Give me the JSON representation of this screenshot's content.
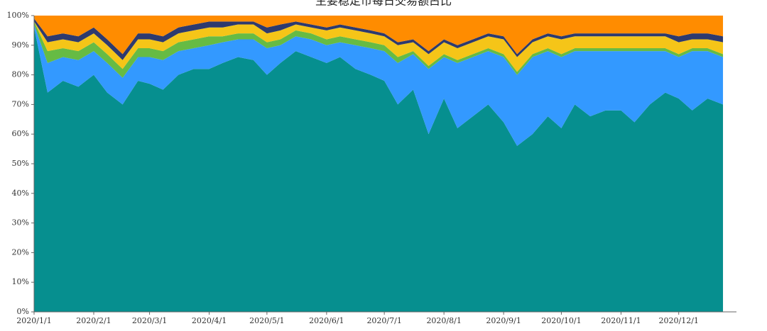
{
  "chart_data": {
    "type": "stacked_area",
    "title": "主要稳定币每日交易额占比",
    "x": [
      "2020/1/1",
      "2020/1/8",
      "2020/1/16",
      "2020/1/24",
      "2020/2/1",
      "2020/2/8",
      "2020/2/16",
      "2020/2/24",
      "2020/3/1",
      "2020/3/8",
      "2020/3/16",
      "2020/3/24",
      "2020/4/1",
      "2020/4/8",
      "2020/4/16",
      "2020/4/24",
      "2020/5/1",
      "2020/5/8",
      "2020/5/16",
      "2020/5/24",
      "2020/6/1",
      "2020/6/8",
      "2020/6/16",
      "2020/6/24",
      "2020/7/1",
      "2020/7/8",
      "2020/7/16",
      "2020/7/24",
      "2020/8/1",
      "2020/8/8",
      "2020/8/16",
      "2020/8/24",
      "2020/9/1",
      "2020/9/8",
      "2020/9/16",
      "2020/9/24",
      "2020/10/1",
      "2020/10/8",
      "2020/10/16",
      "2020/10/24",
      "2020/11/1",
      "2020/11/8",
      "2020/11/16",
      "2020/11/24",
      "2020/12/1",
      "2020/12/8",
      "2020/12/16",
      "2020/12/24"
    ],
    "series": [
      {
        "color": "#068f8f",
        "values": [
          96,
          74,
          78,
          76,
          80,
          74,
          70,
          78,
          77,
          75,
          80,
          82,
          82,
          84,
          86,
          85,
          80,
          84,
          88,
          86,
          84,
          86,
          82,
          80,
          78,
          70,
          75,
          60,
          72,
          62,
          66,
          70,
          64,
          56,
          60,
          66,
          62,
          70,
          66,
          68,
          68,
          64,
          70,
          74,
          72,
          68,
          72,
          70
        ]
      },
      {
        "color": "#3399ff",
        "values": [
          1,
          10,
          8,
          9,
          8,
          10,
          9,
          8,
          9,
          10,
          8,
          7,
          8,
          7,
          6,
          7,
          9,
          6,
          5,
          6,
          6,
          5,
          8,
          9,
          10,
          14,
          12,
          22,
          14,
          22,
          20,
          18,
          22,
          24,
          26,
          22,
          24,
          18,
          22,
          20,
          20,
          24,
          18,
          14,
          14,
          20,
          16,
          16
        ]
      },
      {
        "color": "#66bb44",
        "values": [
          1,
          4,
          3,
          3,
          3,
          3,
          3,
          3,
          3,
          3,
          3,
          3,
          3,
          2,
          2,
          2,
          2,
          2,
          2,
          2,
          2,
          2,
          2,
          2,
          2,
          2,
          1,
          1,
          1,
          1,
          1,
          1,
          1,
          1,
          1,
          1,
          1,
          1,
          1,
          1,
          1,
          1,
          1,
          1,
          1,
          1,
          1,
          1
        ]
      },
      {
        "color": "#f5c518",
        "values": [
          0,
          3,
          3,
          3,
          3,
          3,
          3,
          3,
          3,
          3,
          3,
          3,
          3,
          3,
          3,
          3,
          3,
          3,
          2,
          2,
          3,
          3,
          3,
          3,
          3,
          4,
          3,
          4,
          4,
          4,
          4,
          4,
          5,
          5,
          4,
          4,
          5,
          4,
          4,
          4,
          4,
          4,
          4,
          4,
          4,
          3,
          3,
          4
        ]
      },
      {
        "color": "#2e3a6e",
        "values": [
          1,
          2,
          2,
          2,
          2,
          2,
          2,
          2,
          2,
          2,
          2,
          2,
          2,
          2,
          1,
          1,
          2,
          2,
          1,
          1,
          1,
          1,
          1,
          1,
          1,
          1,
          1,
          1,
          1,
          1,
          1,
          1,
          1,
          1,
          1,
          1,
          1,
          1,
          1,
          1,
          1,
          1,
          1,
          1,
          2,
          2,
          2,
          2
        ]
      },
      {
        "color": "#ff8c00",
        "values": [
          1,
          7,
          6,
          7,
          4,
          8,
          13,
          6,
          6,
          7,
          4,
          3,
          2,
          2,
          2,
          2,
          4,
          3,
          2,
          3,
          4,
          3,
          4,
          5,
          6,
          9,
          8,
          12,
          8,
          10,
          8,
          6,
          7,
          13,
          8,
          6,
          7,
          6,
          6,
          6,
          6,
          6,
          6,
          6,
          7,
          6,
          6,
          7
        ]
      }
    ],
    "xlim": [
      "2020/1/1",
      "2020/12/31"
    ],
    "xticks": [
      "2020/1/1",
      "2020/2/1",
      "2020/3/1",
      "2020/4/1",
      "2020/5/1",
      "2020/6/1",
      "2020/7/1",
      "2020/8/1",
      "2020/9/1",
      "2020/10/1",
      "2020/11/1",
      "2020/12/1"
    ],
    "ylim": [
      0,
      100
    ],
    "yticks": [
      {
        "value": 0,
        "label": "0%"
      },
      {
        "value": 10,
        "label": "10%"
      },
      {
        "value": 20,
        "label": "20%"
      },
      {
        "value": 30,
        "label": "30%"
      },
      {
        "value": 40,
        "label": "40%"
      },
      {
        "value": 50,
        "label": "50%"
      },
      {
        "value": 60,
        "label": "60%"
      },
      {
        "value": 70,
        "label": "70%"
      },
      {
        "value": 80,
        "label": "80%"
      },
      {
        "value": 90,
        "label": "90%"
      },
      {
        "value": 100,
        "label": "100%"
      }
    ]
  }
}
